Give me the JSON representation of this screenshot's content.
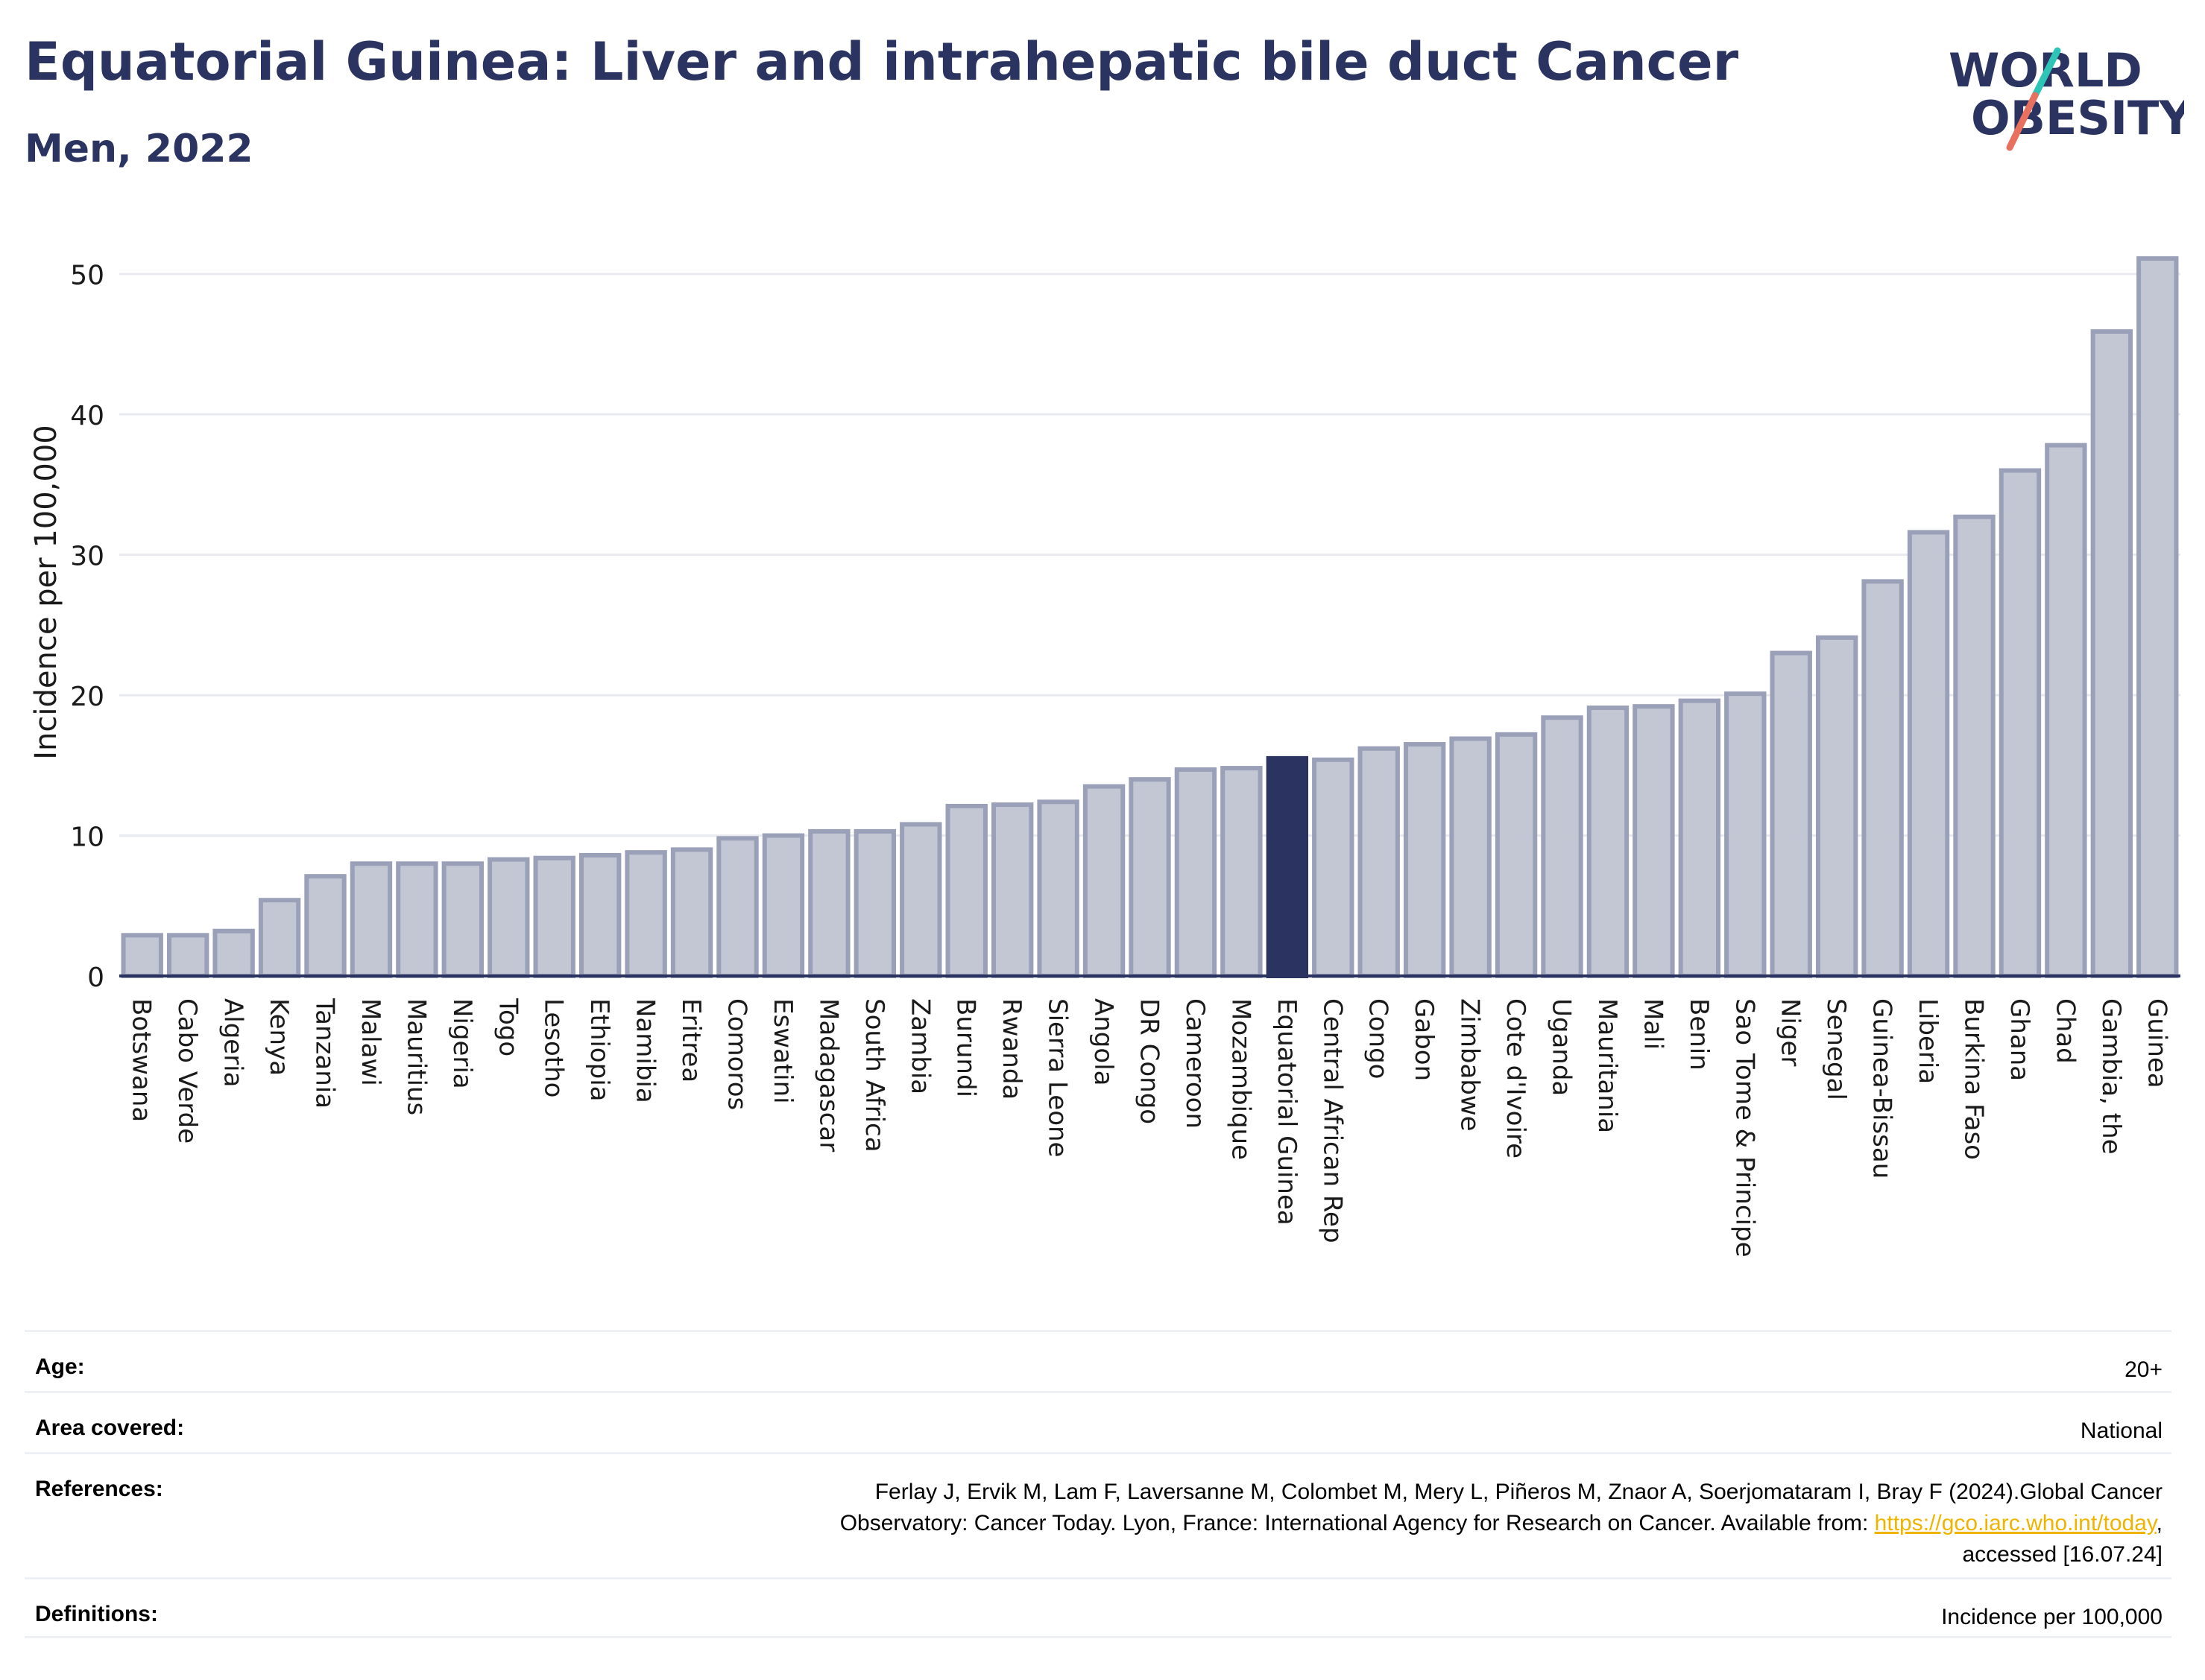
{
  "header": {
    "title": "Equatorial Guinea: Liver and intrahepatic bile duct Cancer",
    "subtitle": "Men, 2022"
  },
  "logo": {
    "line1": "WORLD",
    "line2": "OBESITY",
    "colors": {
      "text": "#2b3461",
      "teal": "#2ec4b6",
      "coral": "#e8705f"
    }
  },
  "colors": {
    "bar": "#c3c7d4",
    "bar_stroke": "#9aa0b8",
    "highlight": "#2b3461",
    "grid": "#e8eaf0",
    "axis": "#2b3461"
  },
  "chart_data": {
    "type": "bar",
    "ylabel": "Incidence per 100,000",
    "ylim": [
      0,
      52
    ],
    "yticks": [
      0,
      10,
      20,
      30,
      40,
      50
    ],
    "grid": true,
    "highlight": "Equatorial Guinea",
    "categories": [
      "Botswana",
      "Cabo Verde",
      "Algeria",
      "Kenya",
      "Tanzania",
      "Malawi",
      "Mauritius",
      "Nigeria",
      "Togo",
      "Lesotho",
      "Ethiopia",
      "Namibia",
      "Eritrea",
      "Comoros",
      "Eswatini",
      "Madagascar",
      "South Africa",
      "Zambia",
      "Burundi",
      "Rwanda",
      "Sierra Leone",
      "Angola",
      "DR Congo",
      "Cameroon",
      "Mozambique",
      "Equatorial Guinea",
      "Central African Rep",
      "Congo",
      "Gabon",
      "Zimbabwe",
      "Cote d'Ivoire",
      "Uganda",
      "Mauritania",
      "Mali",
      "Benin",
      "Sao Tome & Principe",
      "Niger",
      "Senegal",
      "Guinea-Bissau",
      "Liberia",
      "Burkina Faso",
      "Ghana",
      "Chad",
      "Gambia, the",
      "Guinea"
    ],
    "values": [
      2.9,
      2.9,
      3.2,
      5.4,
      7.1,
      8.0,
      8.0,
      8.0,
      8.3,
      8.4,
      8.6,
      8.8,
      9.0,
      9.8,
      10.0,
      10.3,
      10.3,
      10.8,
      12.1,
      12.2,
      12.4,
      13.5,
      14.0,
      14.7,
      14.8,
      15.5,
      15.4,
      16.2,
      16.5,
      16.9,
      17.2,
      18.4,
      19.1,
      19.2,
      19.6,
      20.1,
      23.0,
      24.1,
      28.1,
      31.6,
      32.7,
      36.0,
      37.8,
      45.9,
      51.1
    ]
  },
  "info": {
    "age_label": "Age:",
    "age_value": "20+",
    "area_label": "Area covered:",
    "area_value": "National",
    "ref_label": "References:",
    "ref_line1": "Ferlay J, Ervik M, Lam F, Laversanne M, Colombet M, Mery L, Piñeros M, Znaor A, Soerjomataram I, Bray F (2024).Global Cancer",
    "ref_line2_pre": "Observatory: Cancer Today. Lyon, France: International Agency for Research on Cancer. Available from: ",
    "ref_link": "https://gco.iarc.who.int/today",
    "ref_line2_post": ",",
    "ref_line3": "accessed [16.07.24]",
    "def_label": "Definitions:",
    "def_value": "Incidence per 100,000"
  }
}
